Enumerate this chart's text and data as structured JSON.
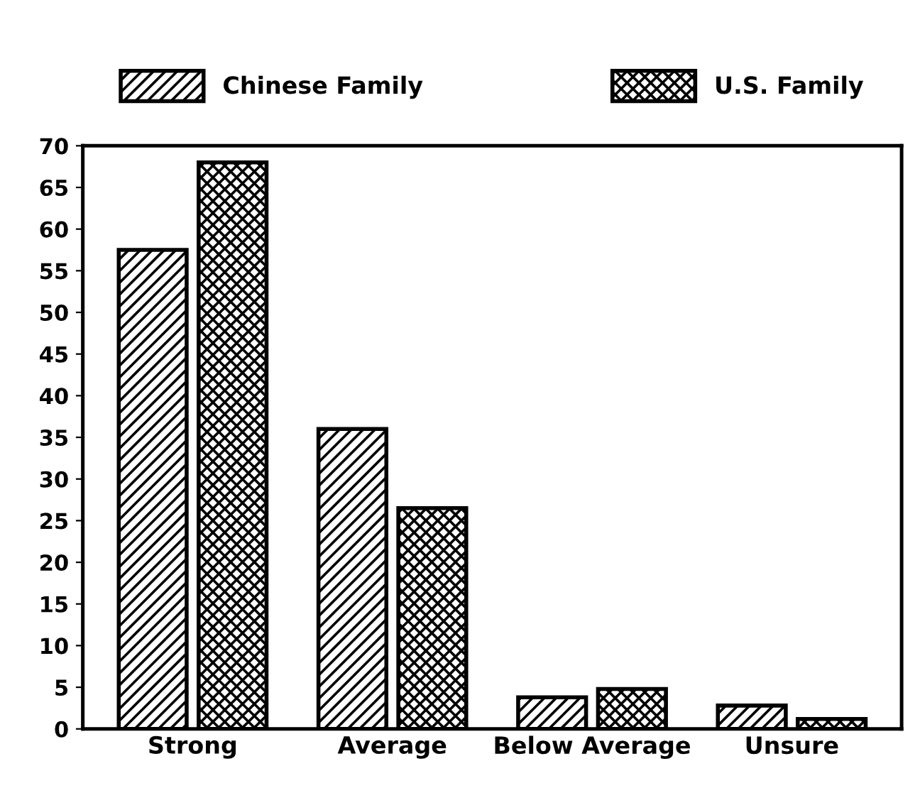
{
  "chart_data": {
    "type": "bar",
    "categories": [
      "Strong",
      "Average",
      "Below Average",
      "Unsure"
    ],
    "series": [
      {
        "name": "Chinese Family",
        "color": "#000000",
        "values": [
          57.5,
          36,
          3.8,
          2.8
        ]
      },
      {
        "name": "U.S. Family",
        "color": "#000000",
        "values": [
          68,
          26.5,
          4.8,
          1.2
        ]
      }
    ],
    "ylim": [
      0,
      70
    ],
    "yticks": [
      0,
      5,
      10,
      15,
      20,
      25,
      30,
      35,
      40,
      45,
      50,
      55,
      60,
      65,
      70
    ],
    "grid": false,
    "legend": "top"
  }
}
